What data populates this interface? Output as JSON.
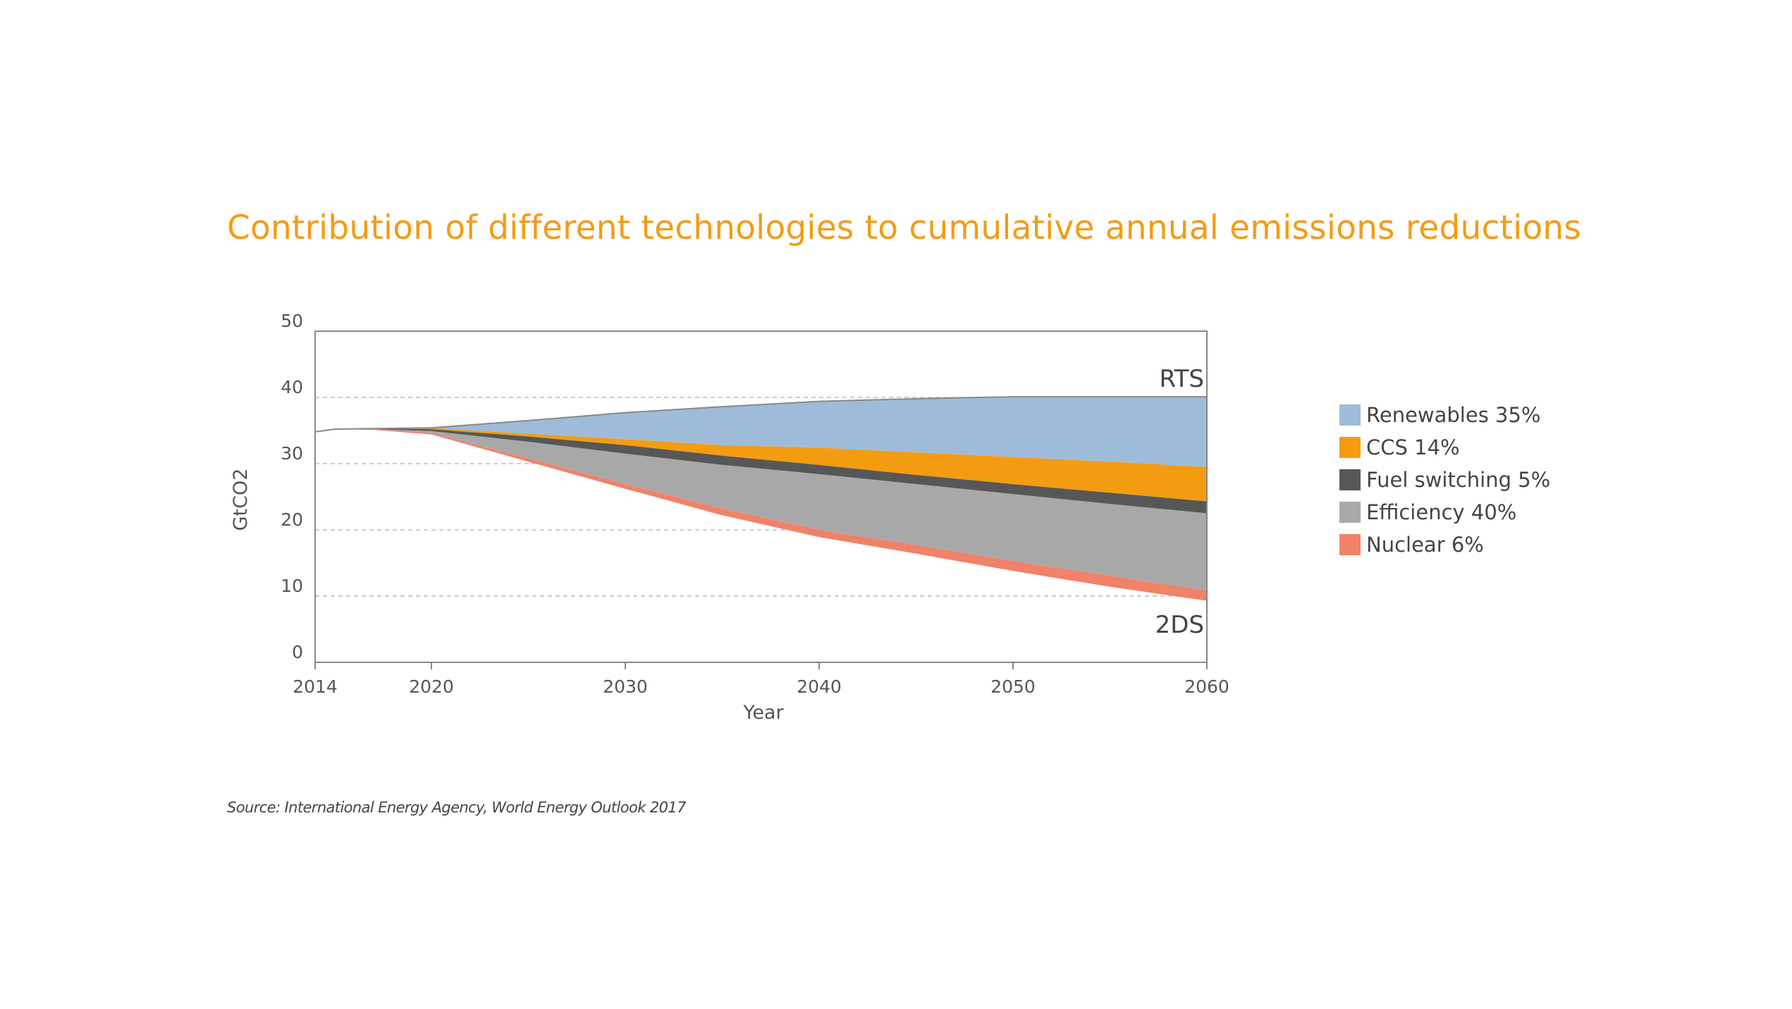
{
  "chart_data": {
    "type": "area",
    "title": "Contribution of different technologies to cumulative annual emissions reductions",
    "xlabel": "Year",
    "ylabel": "GtCO2",
    "xlim": [
      2014,
      2060
    ],
    "ylim": [
      0,
      50
    ],
    "x_ticks": [
      2014,
      2020,
      2030,
      2040,
      2050,
      2060
    ],
    "y_ticks": [
      0,
      10,
      20,
      30,
      40,
      50
    ],
    "grid": "horizontal dashed",
    "legend_position": "right",
    "upper_scenario_label": "RTS",
    "lower_scenario_label": "2DS",
    "x": [
      2014,
      2015,
      2017,
      2020,
      2025,
      2030,
      2035,
      2040,
      2045,
      2050,
      2055,
      2060
    ],
    "upper_bound": {
      "name": "RTS",
      "values": [
        34.8,
        35.2,
        35.3,
        35.4,
        36.5,
        37.7,
        38.6,
        39.4,
        39.8,
        40.1,
        40.1,
        40.1
      ]
    },
    "series": [
      {
        "name": "Renewables 35%",
        "color": "#9ebcd9",
        "top": [
          34.8,
          35.2,
          35.3,
          35.4,
          36.5,
          37.7,
          38.6,
          39.4,
          39.8,
          40.1,
          40.1,
          40.1
        ],
        "bottom": [
          34.8,
          35.2,
          35.3,
          35.4,
          34.5,
          33.7,
          32.8,
          32.4,
          31.7,
          31.0,
          30.3,
          29.5
        ]
      },
      {
        "name": "CCS 14%",
        "color": "#f39c12",
        "top": [
          34.8,
          35.2,
          35.3,
          35.4,
          34.5,
          33.7,
          32.8,
          32.4,
          31.7,
          31.0,
          30.3,
          29.5
        ],
        "bottom": [
          34.8,
          35.2,
          35.3,
          35.2,
          34.1,
          32.8,
          31.2,
          29.8,
          28.3,
          26.9,
          25.6,
          24.3
        ]
      },
      {
        "name": "Fuel switching 5%",
        "color": "#575757",
        "top": [
          34.8,
          35.2,
          35.3,
          35.2,
          34.1,
          32.8,
          31.2,
          29.8,
          28.3,
          26.9,
          25.6,
          24.3
        ],
        "bottom": [
          34.8,
          35.2,
          35.2,
          34.9,
          33.3,
          31.5,
          29.8,
          28.4,
          26.9,
          25.4,
          23.9,
          22.5
        ]
      },
      {
        "name": "Efficiency 40%",
        "color": "#a9a8a8",
        "top": [
          34.8,
          35.2,
          35.2,
          34.9,
          33.3,
          31.5,
          29.8,
          28.4,
          26.9,
          25.4,
          23.9,
          22.5
        ],
        "bottom": [
          34.8,
          35.2,
          35.2,
          34.6,
          30.8,
          26.9,
          23.2,
          20.0,
          17.7,
          15.3,
          13.1,
          10.8
        ]
      },
      {
        "name": "Nuclear 6%",
        "color": "#f0826a",
        "top": [
          34.8,
          35.2,
          35.2,
          34.6,
          30.8,
          26.9,
          23.2,
          20.0,
          17.7,
          15.3,
          13.1,
          10.8
        ],
        "bottom": [
          34.8,
          35.2,
          35.1,
          34.4,
          30.3,
          26.2,
          22.2,
          18.9,
          16.4,
          13.8,
          11.4,
          9.3
        ]
      }
    ],
    "source": "Source: International Energy Agency, World Energy Outlook 2017"
  },
  "colors": {
    "title": "#f39c12",
    "axis": "#888888",
    "gridline": "#bbbbbb",
    "rts_line": "#888888",
    "text": "#444444"
  }
}
